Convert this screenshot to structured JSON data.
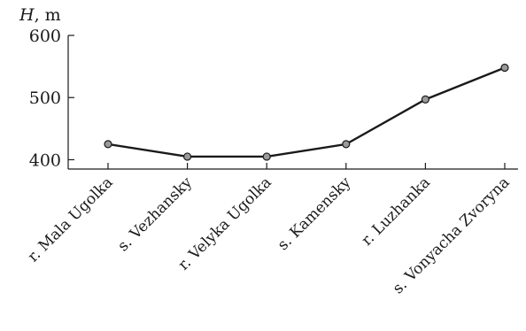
{
  "chart_data": {
    "type": "line",
    "ylabel_var": "H",
    "ylabel_unit": ", m",
    "categories": [
      "r. Mala Ugolka",
      "s. Vezhansky",
      "r. Velyka Ugolka",
      "s. Kamensky",
      "r. Luzhanka",
      "s. Vonyacha Zvoryna"
    ],
    "values": [
      425,
      405,
      405,
      425,
      497,
      548
    ],
    "ylim": [
      385,
      600
    ],
    "yticks": [
      400,
      500,
      600
    ],
    "grid": false,
    "legend": "none",
    "line_color": "#1a1a1a",
    "marker_color": "#9a9a9a"
  }
}
